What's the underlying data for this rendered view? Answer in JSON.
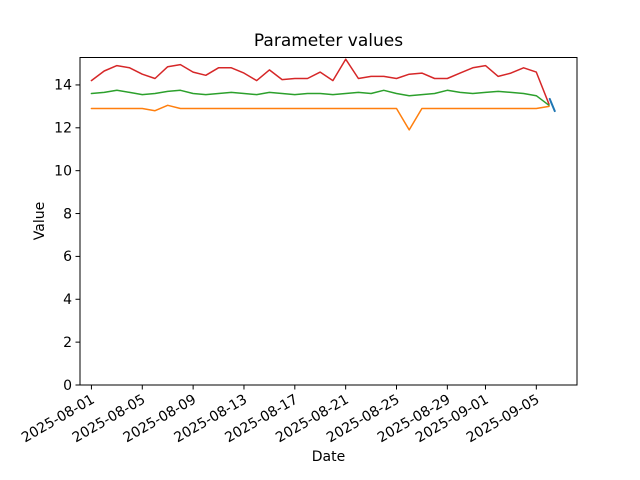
{
  "chart_data": {
    "type": "line",
    "title": "Parameter values",
    "xlabel": "Date",
    "ylabel": "Value",
    "x_unit": "days since 2025-08-01",
    "dates": [
      "2025-08-01",
      "2025-08-02",
      "2025-08-03",
      "2025-08-04",
      "2025-08-05",
      "2025-08-06",
      "2025-08-07",
      "2025-08-08",
      "2025-08-09",
      "2025-08-10",
      "2025-08-11",
      "2025-08-12",
      "2025-08-13",
      "2025-08-14",
      "2025-08-15",
      "2025-08-16",
      "2025-08-17",
      "2025-08-18",
      "2025-08-19",
      "2025-08-20",
      "2025-08-21",
      "2025-08-22",
      "2025-08-23",
      "2025-08-24",
      "2025-08-25",
      "2025-08-26",
      "2025-08-27",
      "2025-08-28",
      "2025-08-29",
      "2025-08-30",
      "2025-08-31",
      "2025-09-01",
      "2025-09-02",
      "2025-09-03",
      "2025-09-04",
      "2025-09-05",
      "2025-09-06"
    ],
    "series": [
      {
        "name": "series-red",
        "color": "#d62728",
        "values": [
          14.2,
          14.65,
          14.9,
          14.8,
          14.5,
          14.3,
          14.85,
          14.95,
          14.6,
          14.45,
          14.8,
          14.8,
          14.55,
          14.2,
          14.7,
          14.25,
          14.3,
          14.3,
          14.6,
          14.2,
          15.2,
          14.3,
          14.4,
          14.4,
          14.3,
          14.5,
          14.55,
          14.3,
          14.3,
          14.55,
          14.8,
          14.9,
          14.4,
          14.55,
          14.8,
          14.6,
          13.1
        ]
      },
      {
        "name": "series-green",
        "color": "#2ca02c",
        "values": [
          13.6,
          13.65,
          13.75,
          13.65,
          13.55,
          13.6,
          13.7,
          13.75,
          13.6,
          13.55,
          13.6,
          13.65,
          13.6,
          13.55,
          13.65,
          13.6,
          13.55,
          13.6,
          13.6,
          13.55,
          13.6,
          13.65,
          13.6,
          13.75,
          13.6,
          13.5,
          13.55,
          13.6,
          13.75,
          13.65,
          13.6,
          13.65,
          13.7,
          13.65,
          13.6,
          13.5,
          13.05
        ]
      },
      {
        "name": "series-orange",
        "color": "#ff7f0e",
        "values": [
          12.9,
          12.9,
          12.9,
          12.9,
          12.9,
          12.8,
          13.05,
          12.9,
          12.9,
          12.9,
          12.9,
          12.9,
          12.9,
          12.9,
          12.9,
          12.9,
          12.9,
          12.9,
          12.9,
          12.9,
          12.9,
          12.9,
          12.9,
          12.9,
          12.9,
          11.9,
          12.9,
          12.9,
          12.9,
          12.9,
          12.9,
          12.9,
          12.9,
          12.9,
          12.9,
          12.9,
          13.0
        ]
      },
      {
        "name": "series-blue-final",
        "color": "#1f77b4",
        "width": 2,
        "x_days": [
          36.05,
          36.45
        ],
        "values": [
          13.35,
          12.78
        ]
      }
    ],
    "x_ticks": {
      "days": [
        0,
        4,
        8,
        12,
        16,
        20,
        24,
        28,
        31,
        35
      ],
      "labels": [
        "2025-08-01",
        "2025-08-05",
        "2025-08-09",
        "2025-08-13",
        "2025-08-17",
        "2025-08-21",
        "2025-08-25",
        "2025-08-29",
        "2025-09-01",
        "2025-09-05"
      ],
      "rotation_deg": 30
    },
    "y_ticks": {
      "values": [
        0,
        2,
        4,
        6,
        8,
        10,
        12,
        14
      ],
      "labels": [
        "0",
        "2",
        "4",
        "6",
        "8",
        "10",
        "12",
        "14"
      ]
    },
    "xlim_days": [
      -0.9,
      38.2
    ],
    "ylim": [
      0,
      15.28
    ],
    "grid": false,
    "legend": null,
    "line_width": 1.5,
    "axis_color": "#000000",
    "background": "#ffffff"
  }
}
